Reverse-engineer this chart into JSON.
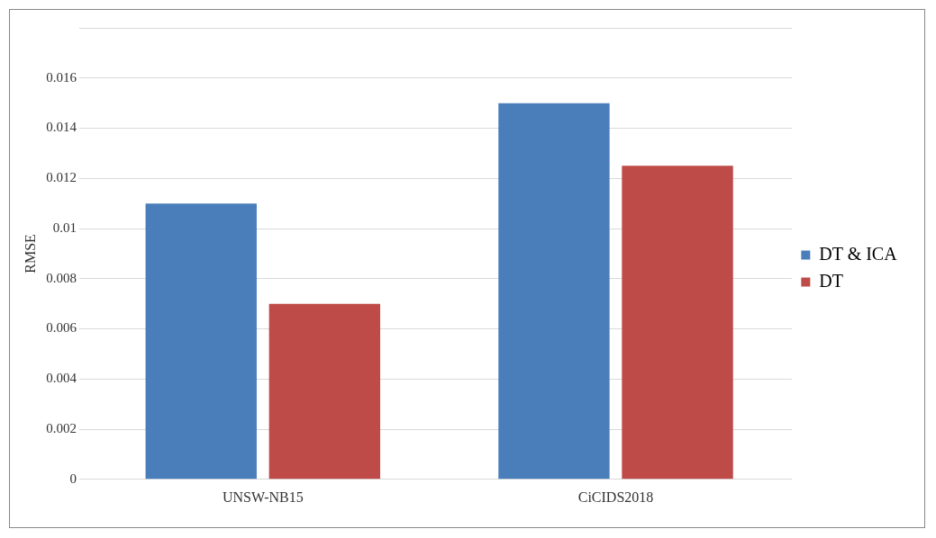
{
  "chart_data": {
    "type": "bar",
    "ylabel": "RMSE",
    "categories": [
      "UNSW-NB15",
      "CiCIDS2018"
    ],
    "series": [
      {
        "name": "DT & ICA",
        "color": "#4a7ebb",
        "values": [
          0.011,
          0.015
        ]
      },
      {
        "name": "DT",
        "color": "#be4b48",
        "values": [
          0.007,
          0.0125
        ]
      }
    ],
    "ylim": [
      0,
      0.018
    ],
    "yticks": [
      0,
      0.002,
      0.004,
      0.006,
      0.008,
      0.01,
      0.012,
      0.014,
      0.016,
      {
        "value": 0.018,
        "label": null
      }
    ],
    "grid": "y",
    "legend": "right"
  }
}
